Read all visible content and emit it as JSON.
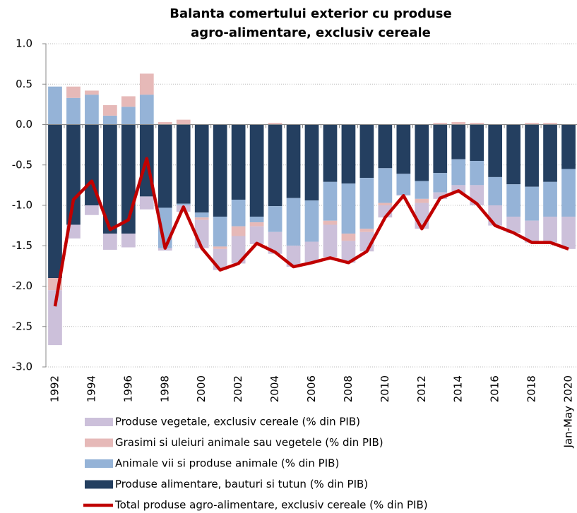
{
  "chart_data": {
    "type": "stacked-bar-line",
    "title": [
      "Balanta comertului exterior cu produse",
      "agro-alimentare, exclusiv cereale"
    ],
    "categories": [
      "1992",
      null,
      "1994",
      null,
      "1996",
      null,
      "1998",
      null,
      "2000",
      null,
      "2002",
      null,
      "2004",
      null,
      "2006",
      null,
      "2008",
      null,
      "2010",
      null,
      "2012",
      null,
      "2014",
      null,
      "2016",
      null,
      "2018",
      null,
      "Jan-May 2020"
    ],
    "ylim": [
      -3.0,
      1.0
    ],
    "yticks": [
      {
        "value": 1.0,
        "label": "1.0"
      },
      {
        "value": 0.5,
        "label": "0.5"
      },
      {
        "value": 0.0,
        "label": "0.0"
      },
      {
        "value": -0.5,
        "label": "-0.5"
      },
      {
        "value": -1.0,
        "label": "-1.0"
      },
      {
        "value": -1.5,
        "label": "-1.5"
      },
      {
        "value": -2.0,
        "label": "-2.0"
      },
      {
        "value": -2.5,
        "label": "-2.5"
      },
      {
        "value": -3.0,
        "label": "-3.0"
      }
    ],
    "grid": true,
    "series": [
      {
        "name": "Produse alimentare, bauturi si tutun (% din PIB)",
        "color": "#243f60",
        "kind": "bar",
        "values": [
          -1.9,
          -1.24,
          -1.0,
          -1.35,
          -1.35,
          -0.89,
          -1.03,
          -0.98,
          -1.09,
          -1.14,
          -0.93,
          -1.14,
          -1.01,
          -0.91,
          -0.94,
          -0.71,
          -0.73,
          -0.66,
          -0.54,
          -0.61,
          -0.7,
          -0.6,
          -0.43,
          -0.45,
          -0.65,
          -0.74,
          -0.77,
          -0.71,
          -0.55
        ]
      },
      {
        "name": "Animale vii si produse animale (% din PIB)",
        "color": "#95b3d7",
        "kind": "bar",
        "values": [
          0.47,
          0.33,
          0.37,
          0.11,
          0.22,
          0.37,
          -0.5,
          -0.02,
          -0.06,
          -0.37,
          -0.33,
          -0.07,
          -0.32,
          -0.59,
          -0.51,
          -0.48,
          -0.62,
          -0.63,
          -0.43,
          -0.26,
          -0.22,
          -0.24,
          -0.32,
          -0.3,
          -0.35,
          -0.4,
          -0.42,
          -0.43,
          -0.59
        ]
      },
      {
        "name": "Grasimi si uleiuri animale sau vegetele (% din PIB)",
        "color": "#e6b9b8",
        "kind": "bar",
        "values": [
          -0.15,
          0.14,
          0.05,
          0.13,
          0.13,
          0.26,
          0.03,
          0.06,
          -0.03,
          -0.03,
          -0.12,
          -0.05,
          0.02,
          0,
          0,
          -0.05,
          -0.09,
          -0.04,
          -0.03,
          0,
          -0.05,
          0.02,
          0.03,
          0.02,
          0,
          0,
          0.02,
          0.02,
          0
        ]
      },
      {
        "name": "Produse vegetale, exclusiv cereale (% din PIB)",
        "color": "#ccc0da",
        "kind": "bar",
        "values": [
          -0.68,
          -0.17,
          -0.12,
          -0.2,
          -0.17,
          -0.16,
          -0.03,
          -0.08,
          -0.35,
          -0.26,
          -0.34,
          -0.22,
          -0.27,
          -0.26,
          -0.26,
          -0.4,
          -0.27,
          -0.24,
          -0.15,
          -0.01,
          -0.32,
          -0.08,
          -0.1,
          -0.25,
          -0.25,
          -0.2,
          -0.27,
          -0.32,
          -0.4
        ]
      },
      {
        "name": "Total produse agro-alimentare, exclusiv cereale (% din PIB)",
        "color": "#c00000",
        "kind": "line",
        "values": [
          -2.25,
          -0.93,
          -0.7,
          -1.3,
          -1.18,
          -0.42,
          -1.53,
          -1.02,
          -1.53,
          -1.8,
          -1.72,
          -1.47,
          -1.58,
          -1.76,
          -1.71,
          -1.65,
          -1.71,
          -1.57,
          -1.15,
          -0.88,
          -1.29,
          -0.91,
          -0.82,
          -0.98,
          -1.25,
          -1.34,
          -1.46,
          -1.46,
          -1.54
        ]
      }
    ],
    "legend_order": [
      3,
      2,
      1,
      0,
      4
    ]
  }
}
